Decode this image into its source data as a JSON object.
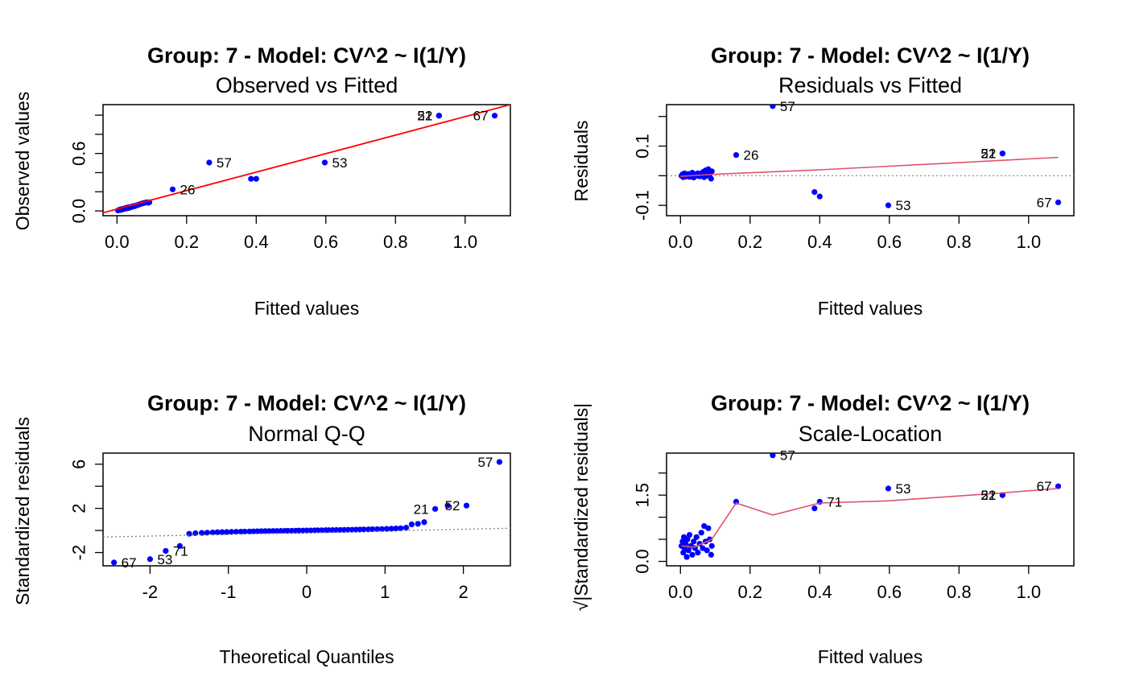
{
  "colors": {
    "points": "#0000ff",
    "fit_line": "#ff0000",
    "smooth_line": "#df536b",
    "reference_line": "#808080",
    "axis": "#000000"
  },
  "chart_data": [
    {
      "type": "scatter",
      "title": "Group: 7 - Model: CV^2 ~ I(1/Y)",
      "subtitle": "Observed vs Fitted",
      "xlabel": "Fitted values",
      "ylabel": "Observed values",
      "xlim": [
        -0.04,
        1.13
      ],
      "ylim": [
        -0.05,
        1.11
      ],
      "xticks": [
        0.0,
        0.2,
        0.4,
        0.6,
        0.8,
        1.0
      ],
      "xtick_labels": [
        "0.0",
        "0.2",
        "0.4",
        "0.6",
        "0.8",
        "1.0"
      ],
      "yticks": [
        0.0,
        0.2,
        0.4,
        0.6,
        0.8,
        1.0
      ],
      "ytick_labels": [
        "0.0",
        "",
        "",
        "0.6",
        "",
        ""
      ],
      "points": [
        [
          0.003,
          0.005
        ],
        [
          0.006,
          0.01
        ],
        [
          0.008,
          0.01
        ],
        [
          0.01,
          0.015
        ],
        [
          0.012,
          0.01
        ],
        [
          0.014,
          0.02
        ],
        [
          0.016,
          0.018
        ],
        [
          0.018,
          0.022
        ],
        [
          0.02,
          0.02
        ],
        [
          0.022,
          0.025
        ],
        [
          0.025,
          0.03
        ],
        [
          0.027,
          0.025
        ],
        [
          0.03,
          0.035
        ],
        [
          0.033,
          0.03
        ],
        [
          0.036,
          0.04
        ],
        [
          0.04,
          0.038
        ],
        [
          0.043,
          0.045
        ],
        [
          0.047,
          0.05
        ],
        [
          0.05,
          0.048
        ],
        [
          0.054,
          0.055
        ],
        [
          0.058,
          0.06
        ],
        [
          0.062,
          0.065
        ],
        [
          0.066,
          0.07
        ],
        [
          0.07,
          0.075
        ],
        [
          0.075,
          0.08
        ],
        [
          0.08,
          0.085
        ],
        [
          0.085,
          0.09
        ],
        [
          0.09,
          0.085
        ],
        [
          0.093,
          0.09
        ],
        [
          0.16,
          0.225
        ],
        [
          0.265,
          0.505
        ],
        [
          0.385,
          0.335
        ],
        [
          0.4,
          0.335
        ],
        [
          0.597,
          0.505
        ],
        [
          0.925,
          0.995
        ],
        [
          0.925,
          0.995
        ],
        [
          1.085,
          0.995
        ]
      ],
      "point_labels": [
        {
          "label": "26",
          "x": 0.16,
          "y": 0.225,
          "side": "right"
        },
        {
          "label": "57",
          "x": 0.265,
          "y": 0.505,
          "side": "right"
        },
        {
          "label": "53",
          "x": 0.597,
          "y": 0.505,
          "side": "right"
        },
        {
          "label": "21",
          "x": 0.925,
          "y": 0.995,
          "side": "left"
        },
        {
          "label": "52",
          "x": 0.925,
          "y": 0.995,
          "side": "left"
        },
        {
          "label": "67",
          "x": 1.085,
          "y": 0.995,
          "side": "left"
        }
      ],
      "line": {
        "kind": "fit",
        "points": [
          [
            -0.04,
            -0.02
          ],
          [
            1.13,
            1.11
          ]
        ]
      }
    },
    {
      "type": "scatter",
      "title": "Group: 7 - Model: CV^2 ~ I(1/Y)",
      "subtitle": "Residuals vs Fitted",
      "xlabel": "Fitted values",
      "ylabel": "Residuals",
      "xlim": [
        -0.04,
        1.13
      ],
      "ylim": [
        -0.135,
        0.24
      ],
      "xticks": [
        0.0,
        0.2,
        0.4,
        0.6,
        0.8,
        1.0
      ],
      "xtick_labels": [
        "0.0",
        "0.2",
        "0.4",
        "0.6",
        "0.8",
        "1.0"
      ],
      "yticks": [
        -0.1,
        0.0,
        0.1,
        0.2
      ],
      "ytick_labels": [
        "-0.1",
        "",
        "0.1",
        ""
      ],
      "hline": 0,
      "points": [
        [
          0.003,
          0.0
        ],
        [
          0.006,
          0.005
        ],
        [
          0.008,
          -0.005
        ],
        [
          0.01,
          0.002
        ],
        [
          0.012,
          0.008
        ],
        [
          0.015,
          -0.003
        ],
        [
          0.018,
          0.004
        ],
        [
          0.02,
          0.0
        ],
        [
          0.023,
          0.006
        ],
        [
          0.026,
          -0.004
        ],
        [
          0.03,
          0.003
        ],
        [
          0.034,
          0.01
        ],
        [
          0.038,
          -0.006
        ],
        [
          0.042,
          0.005
        ],
        [
          0.046,
          0.0
        ],
        [
          0.05,
          0.008
        ],
        [
          0.055,
          -0.002
        ],
        [
          0.06,
          0.004
        ],
        [
          0.064,
          0.012
        ],
        [
          0.068,
          -0.005
        ],
        [
          0.072,
          0.018
        ],
        [
          0.076,
          0.0
        ],
        [
          0.08,
          0.022
        ],
        [
          0.084,
          0.006
        ],
        [
          0.088,
          -0.01
        ],
        [
          0.09,
          0.015
        ],
        [
          0.16,
          0.07
        ],
        [
          0.265,
          0.235
        ],
        [
          0.385,
          -0.055
        ],
        [
          0.4,
          -0.07
        ],
        [
          0.597,
          -0.1
        ],
        [
          0.925,
          0.075
        ],
        [
          0.925,
          0.075
        ],
        [
          1.085,
          -0.09
        ]
      ],
      "point_labels": [
        {
          "label": "26",
          "x": 0.16,
          "y": 0.07,
          "side": "right"
        },
        {
          "label": "57",
          "x": 0.265,
          "y": 0.235,
          "side": "right"
        },
        {
          "label": "53",
          "x": 0.597,
          "y": -0.1,
          "side": "right"
        },
        {
          "label": "21",
          "x": 0.925,
          "y": 0.075,
          "side": "left"
        },
        {
          "label": "52",
          "x": 0.925,
          "y": 0.075,
          "side": "left"
        },
        {
          "label": "67",
          "x": 1.085,
          "y": -0.09,
          "side": "left"
        }
      ],
      "line": {
        "kind": "smooth",
        "points": [
          [
            0.0,
            -0.002
          ],
          [
            0.1,
            0.005
          ],
          [
            0.4,
            0.02
          ],
          [
            0.6,
            0.032
          ],
          [
            0.925,
            0.052
          ],
          [
            1.085,
            0.062
          ]
        ]
      }
    },
    {
      "type": "scatter",
      "title": "Group: 7 - Model: CV^2 ~ I(1/Y)",
      "subtitle": "Normal Q-Q",
      "xlabel": "Theoretical Quantiles",
      "ylabel": "Standardized residuals",
      "xlim": [
        -2.6,
        2.6
      ],
      "ylim": [
        -3.2,
        7.0
      ],
      "xticks": [
        -2,
        -1,
        0,
        1,
        2
      ],
      "xtick_labels": [
        "-2",
        "-1",
        "0",
        "1",
        "2"
      ],
      "yticks": [
        -2,
        0,
        2,
        4,
        6
      ],
      "ytick_labels": [
        "-2",
        "",
        "2",
        "",
        "6"
      ],
      "points": [
        [
          -2.46,
          -2.9
        ],
        [
          -2.0,
          -2.6
        ],
        [
          -1.8,
          -1.85
        ],
        [
          -1.62,
          -1.4
        ],
        [
          -1.5,
          -0.3
        ],
        [
          -1.42,
          -0.25
        ],
        [
          -1.34,
          -0.22
        ],
        [
          -1.27,
          -0.2
        ],
        [
          -1.2,
          -0.18
        ],
        [
          -1.14,
          -0.16
        ],
        [
          -1.08,
          -0.15
        ],
        [
          -1.02,
          -0.14
        ],
        [
          -0.96,
          -0.13
        ],
        [
          -0.9,
          -0.12
        ],
        [
          -0.84,
          -0.11
        ],
        [
          -0.79,
          -0.1
        ],
        [
          -0.73,
          -0.09
        ],
        [
          -0.68,
          -0.08
        ],
        [
          -0.63,
          -0.07
        ],
        [
          -0.58,
          -0.065
        ],
        [
          -0.53,
          -0.06
        ],
        [
          -0.48,
          -0.055
        ],
        [
          -0.43,
          -0.05
        ],
        [
          -0.38,
          -0.045
        ],
        [
          -0.33,
          -0.04
        ],
        [
          -0.28,
          -0.035
        ],
        [
          -0.24,
          -0.03
        ],
        [
          -0.19,
          -0.025
        ],
        [
          -0.14,
          -0.02
        ],
        [
          -0.1,
          -0.015
        ],
        [
          -0.05,
          -0.01
        ],
        [
          0.0,
          0.0
        ],
        [
          0.05,
          0.0
        ],
        [
          0.1,
          0.01
        ],
        [
          0.14,
          0.015
        ],
        [
          0.19,
          0.02
        ],
        [
          0.24,
          0.025
        ],
        [
          0.28,
          0.03
        ],
        [
          0.33,
          0.035
        ],
        [
          0.38,
          0.04
        ],
        [
          0.43,
          0.045
        ],
        [
          0.48,
          0.05
        ],
        [
          0.53,
          0.06
        ],
        [
          0.58,
          0.065
        ],
        [
          0.63,
          0.07
        ],
        [
          0.68,
          0.08
        ],
        [
          0.73,
          0.09
        ],
        [
          0.79,
          0.1
        ],
        [
          0.84,
          0.11
        ],
        [
          0.9,
          0.12
        ],
        [
          0.96,
          0.13
        ],
        [
          1.02,
          0.14
        ],
        [
          1.08,
          0.16
        ],
        [
          1.14,
          0.18
        ],
        [
          1.2,
          0.2
        ],
        [
          1.27,
          0.25
        ],
        [
          1.34,
          0.55
        ],
        [
          1.42,
          0.6
        ],
        [
          1.5,
          0.75
        ],
        [
          1.64,
          1.95
        ],
        [
          1.8,
          2.25
        ],
        [
          2.04,
          2.25
        ],
        [
          2.46,
          6.2
        ]
      ],
      "point_labels": [
        {
          "label": "67",
          "x": -2.46,
          "y": -2.9,
          "side": "right"
        },
        {
          "label": "53",
          "x": -2.0,
          "y": -2.6,
          "side": "right"
        },
        {
          "label": "71",
          "x": -1.8,
          "y": -1.85,
          "side": "right"
        },
        {
          "label": "21",
          "x": 1.64,
          "y": 1.95,
          "side": "left"
        },
        {
          "label": "52",
          "x": 2.04,
          "y": 2.25,
          "side": "left"
        },
        {
          "label": "57",
          "x": 2.46,
          "y": 6.2,
          "side": "left"
        }
      ],
      "line": {
        "kind": "reference",
        "points": [
          [
            -2.6,
            -0.6
          ],
          [
            2.6,
            0.2
          ]
        ]
      }
    },
    {
      "type": "scatter",
      "title": "Group: 7 - Model: CV^2 ~ I(1/Y)",
      "subtitle": "Scale-Location",
      "xlabel": "Fitted values",
      "ylabel": "√|Standardized residuals|",
      "xlim": [
        -0.04,
        1.13
      ],
      "ylim": [
        -0.1,
        2.45
      ],
      "xticks": [
        0.0,
        0.2,
        0.4,
        0.6,
        0.8,
        1.0
      ],
      "xtick_labels": [
        "0.0",
        "0.2",
        "0.4",
        "0.6",
        "0.8",
        "1.0"
      ],
      "yticks": [
        0.0,
        0.5,
        1.0,
        1.5,
        2.0
      ],
      "ytick_labels": [
        "0.0",
        "",
        "",
        "1.5",
        ""
      ],
      "points": [
        [
          0.003,
          0.35
        ],
        [
          0.006,
          0.45
        ],
        [
          0.008,
          0.2
        ],
        [
          0.01,
          0.55
        ],
        [
          0.012,
          0.3
        ],
        [
          0.015,
          0.4
        ],
        [
          0.018,
          0.1
        ],
        [
          0.02,
          0.5
        ],
        [
          0.023,
          0.25
        ],
        [
          0.026,
          0.6
        ],
        [
          0.03,
          0.35
        ],
        [
          0.034,
          0.15
        ],
        [
          0.038,
          0.45
        ],
        [
          0.042,
          0.3
        ],
        [
          0.046,
          0.55
        ],
        [
          0.05,
          0.2
        ],
        [
          0.055,
          0.4
        ],
        [
          0.06,
          0.65
        ],
        [
          0.064,
          0.3
        ],
        [
          0.068,
          0.8
        ],
        [
          0.072,
          0.45
        ],
        [
          0.076,
          0.25
        ],
        [
          0.08,
          0.75
        ],
        [
          0.084,
          0.5
        ],
        [
          0.088,
          0.15
        ],
        [
          0.09,
          0.35
        ],
        [
          0.16,
          1.35
        ],
        [
          0.265,
          2.4
        ],
        [
          0.385,
          1.2
        ],
        [
          0.4,
          1.35
        ],
        [
          0.597,
          1.65
        ],
        [
          0.925,
          1.5
        ],
        [
          0.925,
          1.5
        ],
        [
          1.085,
          1.7
        ]
      ],
      "point_labels": [
        {
          "label": "57",
          "x": 0.265,
          "y": 2.4,
          "side": "right"
        },
        {
          "label": "71",
          "x": 0.4,
          "y": 1.35,
          "side": "right"
        },
        {
          "label": "53",
          "x": 0.597,
          "y": 1.65,
          "side": "right"
        },
        {
          "label": "21",
          "x": 0.925,
          "y": 1.5,
          "side": "left"
        },
        {
          "label": "52",
          "x": 0.925,
          "y": 1.5,
          "side": "left"
        },
        {
          "label": "67",
          "x": 1.085,
          "y": 1.7,
          "side": "left"
        }
      ],
      "line": {
        "kind": "smooth",
        "points": [
          [
            0.003,
            0.35
          ],
          [
            0.04,
            0.32
          ],
          [
            0.09,
            0.5
          ],
          [
            0.16,
            1.32
          ],
          [
            0.265,
            1.05
          ],
          [
            0.4,
            1.32
          ],
          [
            0.597,
            1.37
          ],
          [
            0.925,
            1.55
          ],
          [
            1.085,
            1.65
          ]
        ]
      }
    }
  ]
}
